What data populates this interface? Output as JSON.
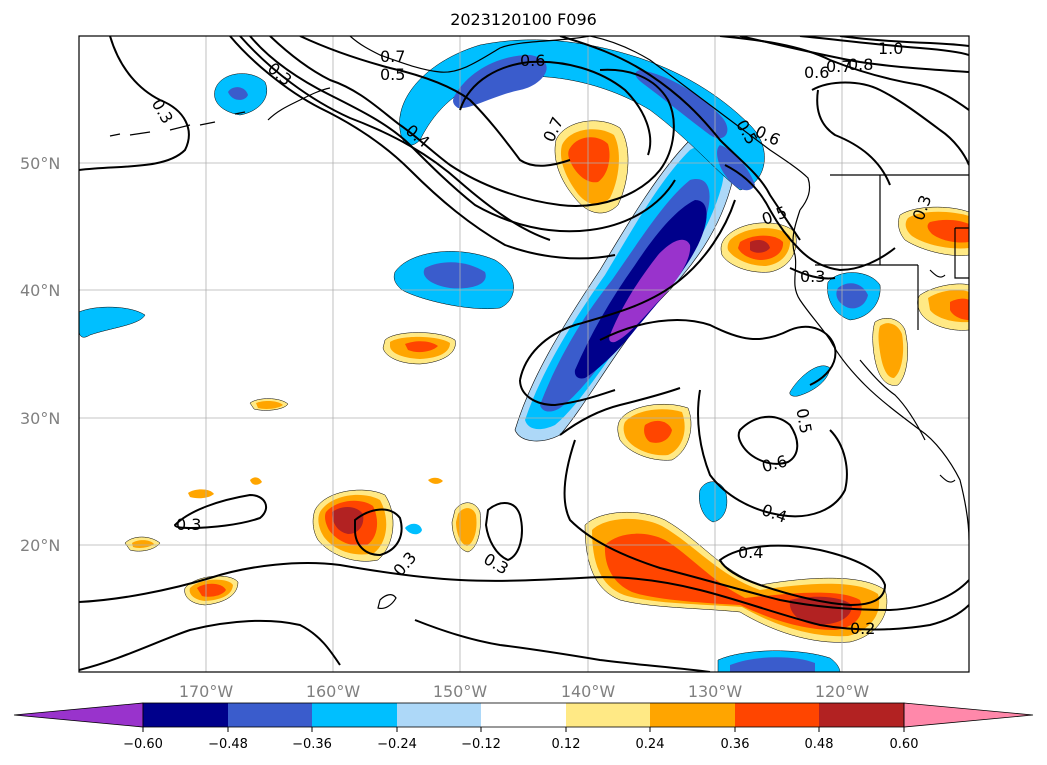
{
  "title": "2023120100 F096",
  "map": {
    "lon_range": [
      -180,
      -110
    ],
    "lat_range": [
      10,
      60
    ],
    "grid": true,
    "lat_ticks": [
      {
        "lat": 50,
        "label": "50°N"
      },
      {
        "lat": 40,
        "label": "40°N"
      },
      {
        "lat": 30,
        "label": "30°N"
      },
      {
        "lat": 20,
        "label": "20°N"
      }
    ],
    "lon_ticks": [
      {
        "lon": -170,
        "label": "170°W"
      },
      {
        "lon": -160,
        "label": "160°W"
      },
      {
        "lon": -150,
        "label": "150°W"
      },
      {
        "lon": -140,
        "label": "140°W"
      },
      {
        "lon": -130,
        "label": "130°W"
      },
      {
        "lon": -120,
        "label": "120°W"
      }
    ],
    "contour_labels": [
      "0.3",
      "0.3",
      "0.7",
      "0.5",
      "0.6",
      "0.4",
      "0.7",
      "0.6",
      "0.5",
      "0.6",
      "0.7",
      "0.8",
      "1.0",
      "0.5",
      "0.3",
      "0.3",
      "0.3",
      "0.5",
      "0.6",
      "0.4",
      "0.4",
      "0.3",
      "0.3",
      "0.2"
    ]
  },
  "colorbar": {
    "extend": "both",
    "ticks": [
      "−0.60",
      "−0.48",
      "−0.36",
      "−0.24",
      "−0.12",
      "0.12",
      "0.24",
      "0.36",
      "0.48",
      "0.60"
    ],
    "colors": {
      "under": "#9933cc",
      "neg_060_048": "#00008b",
      "neg_048_036": "#3a5ccc",
      "neg_036_024": "#00bfff",
      "neg_024_012": "#add8f8",
      "neutral": "#ffffff",
      "pos_012_024": "#ffe985",
      "pos_024_036": "#ffa500",
      "pos_036_048": "#ff4500",
      "pos_048_060": "#b22222",
      "over": "#ff88aa"
    }
  }
}
